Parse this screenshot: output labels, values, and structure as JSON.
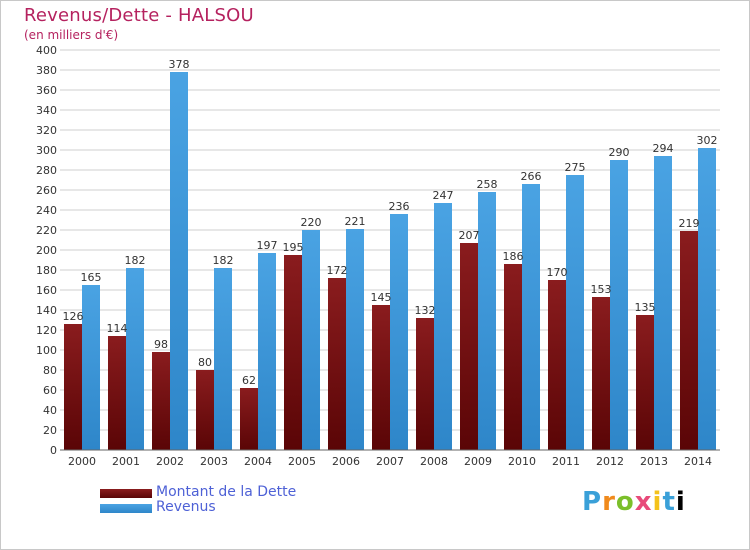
{
  "header": {
    "title": "Revenus/Dette - HALSOU",
    "subtitle": "(en milliers d'€)"
  },
  "colors": {
    "debt": "#7a1416",
    "revenue": "#4aa3e3",
    "title": "#b5225f",
    "legend_text": "#4e61d6"
  },
  "legend": {
    "debt_label": "Montant de la Dette",
    "revenue_label": "Revenus"
  },
  "brand": {
    "letters": [
      "P",
      "r",
      "o",
      "x",
      "i",
      "t",
      "i"
    ]
  },
  "chart_data": {
    "type": "bar",
    "title": "Revenus/Dette - HALSOU",
    "subtitle": "(en milliers d'€)",
    "categories": [
      "2000",
      "2001",
      "2002",
      "2003",
      "2004",
      "2005",
      "2006",
      "2007",
      "2008",
      "2009",
      "2010",
      "2011",
      "2012",
      "2013",
      "2014"
    ],
    "series": [
      {
        "name": "Montant de la Dette",
        "values": [
          126,
          114,
          98,
          80,
          62,
          195,
          172,
          145,
          132,
          207,
          186,
          170,
          153,
          135,
          219
        ]
      },
      {
        "name": "Revenus",
        "values": [
          165,
          182,
          378,
          182,
          197,
          220,
          221,
          236,
          247,
          258,
          266,
          275,
          290,
          294,
          302
        ]
      }
    ],
    "ylim": [
      0,
      400
    ],
    "yticks": [
      0,
      20,
      40,
      60,
      80,
      100,
      120,
      140,
      160,
      180,
      200,
      220,
      240,
      260,
      280,
      300,
      320,
      340,
      360,
      380,
      400
    ],
    "grid": true,
    "legend_position": "bottom-left"
  }
}
